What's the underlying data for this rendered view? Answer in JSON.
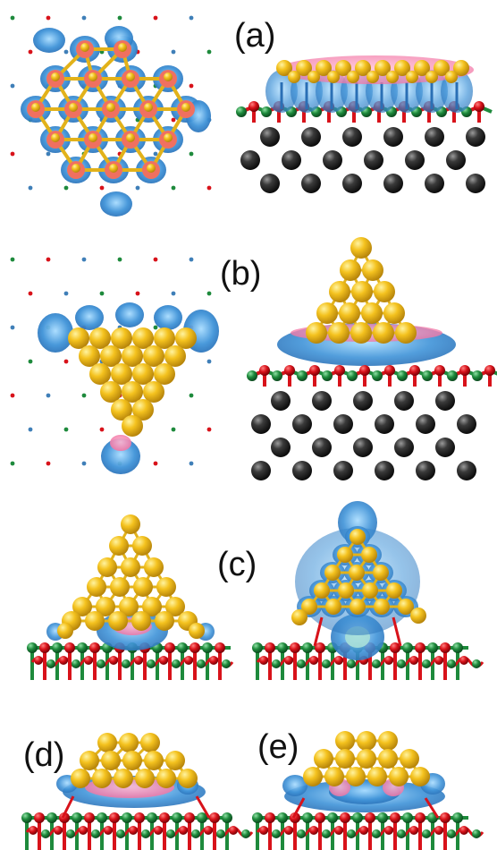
{
  "panels": [
    {
      "id": "a",
      "label": "(a)"
    },
    {
      "id": "b",
      "label": "(b)"
    },
    {
      "id": "c",
      "label": "(c)"
    },
    {
      "id": "d",
      "label": "(d)"
    },
    {
      "id": "e",
      "label": "(e)"
    }
  ],
  "colors": {
    "gold": "#f4c21e",
    "gold_edge": "#b8860b",
    "oxygen": "#d8121a",
    "zinc": "#1e8a3c",
    "substrate": "#2b2b2b",
    "charge_depletion": "#3f93d8",
    "charge_accumulation": "#f06fa0",
    "bond": "#e7b81a"
  }
}
